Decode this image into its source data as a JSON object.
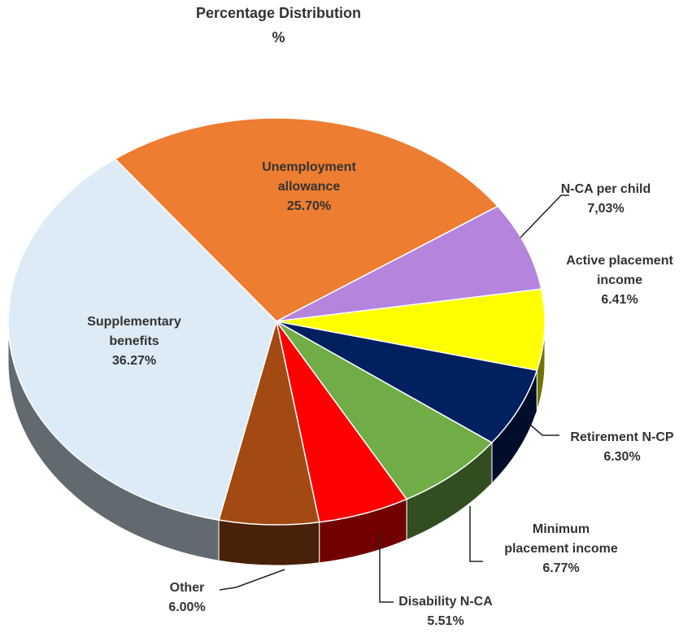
{
  "chart_data": {
    "type": "pie",
    "title": "Percentage Distribution",
    "subtitle": "%",
    "categories": [
      "Unemployment allowance",
      "N-CA per child",
      "Active placement income",
      "Retirement N-CP",
      "Minimum placement income",
      "Disability N-CA",
      "Other",
      "Supplementary benefits"
    ],
    "values": [
      25.7,
      7.03,
      6.41,
      6.3,
      6.77,
      5.51,
      6.0,
      36.27
    ],
    "value_labels": [
      "25.70%",
      "7,03%",
      "6.41%",
      "6.30%",
      "6.77%",
      "5.51%",
      "6.00%",
      "36.27%"
    ],
    "colors": [
      "#ED7D31",
      "#B584DC",
      "#FFFF00",
      "#002060",
      "#70AD47",
      "#FF0000",
      "#A24A12",
      "#DDEBF7"
    ]
  }
}
